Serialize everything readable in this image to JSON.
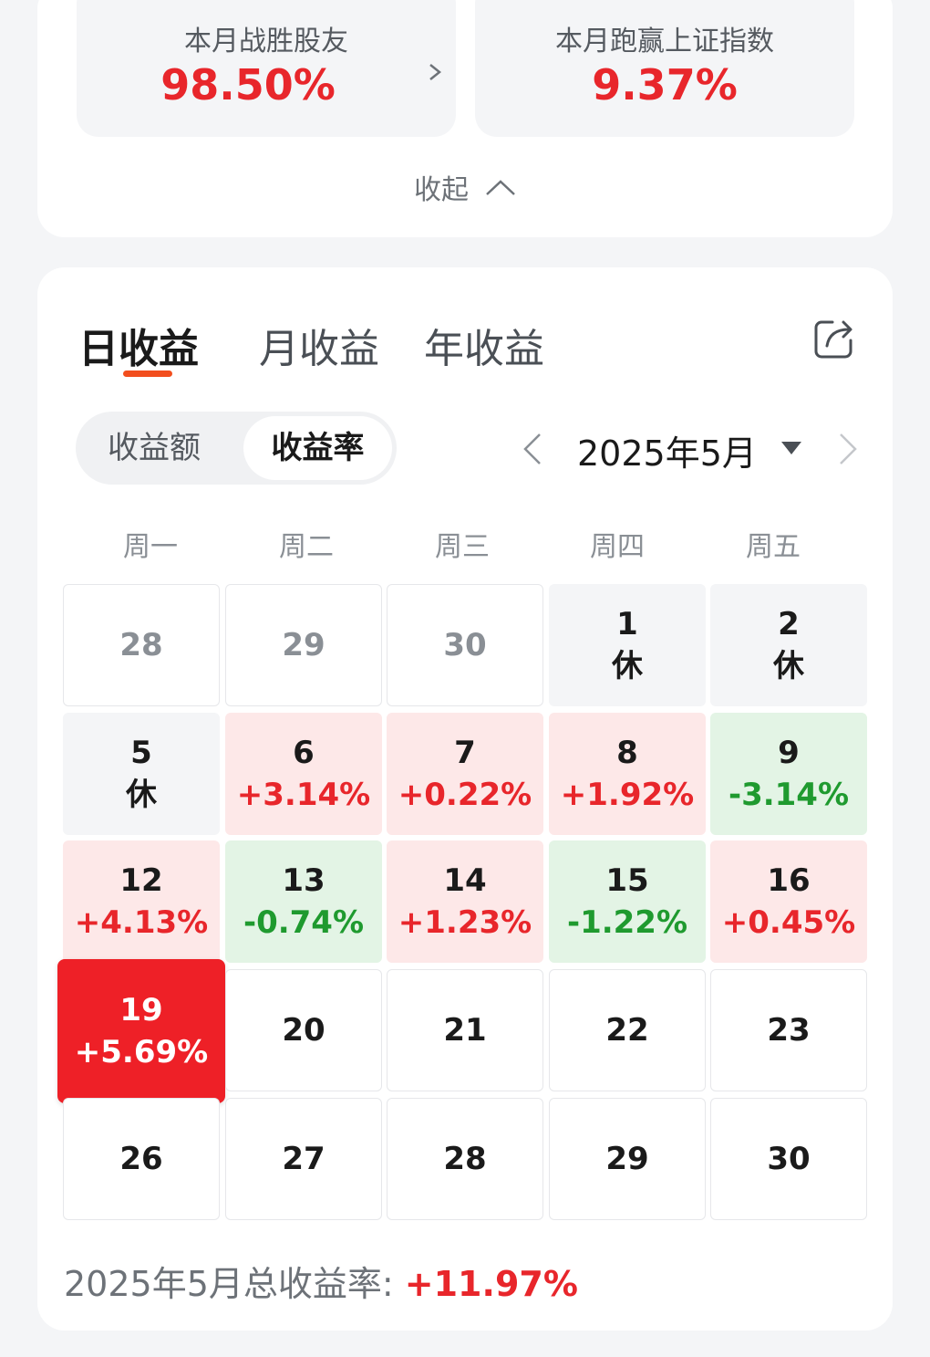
{
  "summary": {
    "beat_friends_label": "本月战胜股友",
    "beat_friends_value": "98.50%",
    "beat_index_label": "本月跑赢上证指数",
    "beat_index_value": "9.37%",
    "collapse_label": "收起"
  },
  "tabs": [
    {
      "label": "日收益",
      "active": true
    },
    {
      "label": "月收益",
      "active": false
    },
    {
      "label": "年收益",
      "active": false
    }
  ],
  "segment": {
    "amount_label": "收益额",
    "rate_label": "收益率",
    "selected": "收益率"
  },
  "month_picker": {
    "label": "2025年5月"
  },
  "weekdays": [
    "周一",
    "周二",
    "周三",
    "周四",
    "周五"
  ],
  "calendar": {
    "rows": [
      [
        {
          "day": "28",
          "value": "",
          "state": "other"
        },
        {
          "day": "29",
          "value": "",
          "state": "other"
        },
        {
          "day": "30",
          "value": "",
          "state": "other"
        },
        {
          "day": "1",
          "value": "休",
          "state": "holiday"
        },
        {
          "day": "2",
          "value": "休",
          "state": "holiday"
        }
      ],
      [
        {
          "day": "5",
          "value": "休",
          "state": "holiday"
        },
        {
          "day": "6",
          "value": "+3.14%",
          "state": "up"
        },
        {
          "day": "7",
          "value": "+0.22%",
          "state": "up"
        },
        {
          "day": "8",
          "value": "+1.92%",
          "state": "up"
        },
        {
          "day": "9",
          "value": "-3.14%",
          "state": "down"
        }
      ],
      [
        {
          "day": "12",
          "value": "+4.13%",
          "state": "up"
        },
        {
          "day": "13",
          "value": "-0.74%",
          "state": "down"
        },
        {
          "day": "14",
          "value": "+1.23%",
          "state": "up"
        },
        {
          "day": "15",
          "value": "-1.22%",
          "state": "down"
        },
        {
          "day": "16",
          "value": "+0.45%",
          "state": "up"
        }
      ],
      [
        {
          "day": "19",
          "value": "+5.69%",
          "state": "today"
        },
        {
          "day": "20",
          "value": "",
          "state": "future"
        },
        {
          "day": "21",
          "value": "",
          "state": "future"
        },
        {
          "day": "22",
          "value": "",
          "state": "future"
        },
        {
          "day": "23",
          "value": "",
          "state": "future"
        }
      ],
      [
        {
          "day": "26",
          "value": "",
          "state": "future"
        },
        {
          "day": "27",
          "value": "",
          "state": "future"
        },
        {
          "day": "28",
          "value": "",
          "state": "future"
        },
        {
          "day": "29",
          "value": "",
          "state": "future"
        },
        {
          "day": "30",
          "value": "",
          "state": "future"
        }
      ]
    ]
  },
  "total": {
    "label": "2025年5月总收益率:",
    "value": "+11.97%"
  },
  "colors": {
    "up": "#e8262b",
    "down": "#1f9a2f",
    "accent": "#f24e1e",
    "today": "#ee2027"
  },
  "icons": {
    "share": "share-icon",
    "prev": "chevron-left-icon",
    "next": "chevron-right-icon",
    "dropdown": "triangle-down-icon",
    "collapse": "chevron-up-icon"
  }
}
